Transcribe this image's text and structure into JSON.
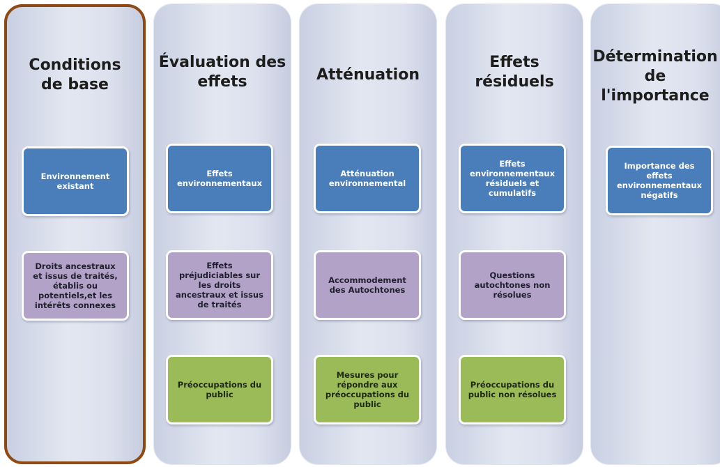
{
  "columns": [
    {
      "title": "Conditions de base",
      "boxes": [
        {
          "text": "Environnement existant",
          "color": "#4a7ebb"
        },
        {
          "text": "Droits ancestraux et issus de traités, établis ou potentiels,et les intérêts connexes",
          "color": "#b3a2c8"
        }
      ]
    },
    {
      "title": "Évaluation des effets",
      "boxes": [
        {
          "text": "Effets environnementaux",
          "color": "#4a7ebb"
        },
        {
          "text": "Effets préjudiciables sur les droits ancestraux et issus de traités",
          "color": "#b3a2c8"
        },
        {
          "text": "Préoccupations du public",
          "color": "#9bbb59"
        }
      ]
    },
    {
      "title": "Atténuation",
      "boxes": [
        {
          "text": "Atténuation environnemental",
          "color": "#4a7ebb"
        },
        {
          "text": "Accommodement des Autochtones",
          "color": "#b3a2c8"
        },
        {
          "text": "Mesures pour répondre aux préoccupations du public",
          "color": "#9bbb59"
        }
      ]
    },
    {
      "title": "Effets résiduels",
      "boxes": [
        {
          "text": "Effets environnementaux résiduels et cumulatifs",
          "color": "#4a7ebb"
        },
        {
          "text": "Questions autochtones non résolues",
          "color": "#b3a2c8"
        },
        {
          "text": "Préoccupations du public non résolues",
          "color": "#9bbb59"
        }
      ]
    },
    {
      "title": "Détermination de l'importance",
      "boxes": [
        {
          "text": "Importance des effets environnementaux négatifs",
          "color": "#4a7ebb"
        }
      ]
    }
  ],
  "colors": {
    "highlight_border": "#8f4a14",
    "blue": "#4a7ebb",
    "purple": "#b3a2c8",
    "green": "#9bbb59"
  }
}
